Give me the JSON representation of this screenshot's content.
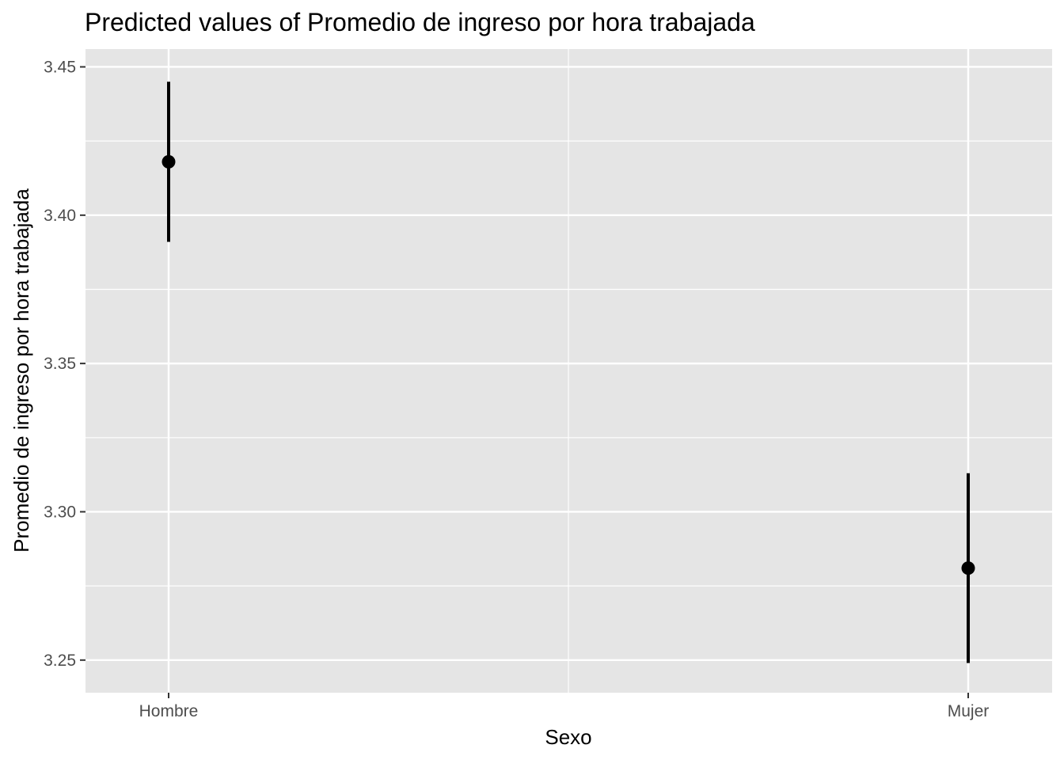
{
  "chart_data": {
    "type": "errorbar",
    "title": "Predicted values of Promedio de ingreso por hora trabajada",
    "xlabel": "Sexo",
    "ylabel": "Promedio de ingreso por hora trabajada",
    "categories": [
      "Hombre",
      "Mujer"
    ],
    "values": [
      3.418,
      3.281
    ],
    "ci_low": [
      3.391,
      3.249
    ],
    "ci_high": [
      3.445,
      3.313
    ],
    "ylim": [
      3.239,
      3.456
    ],
    "yticks": [
      3.25,
      3.3,
      3.35,
      3.4,
      3.45
    ],
    "ytick_labels": [
      "3.25",
      "3.30",
      "3.35",
      "3.40",
      "3.45"
    ],
    "grid": true,
    "colors": {
      "panel": "#e5e5e5",
      "grid": "#ffffff",
      "mark": "#000000"
    }
  }
}
